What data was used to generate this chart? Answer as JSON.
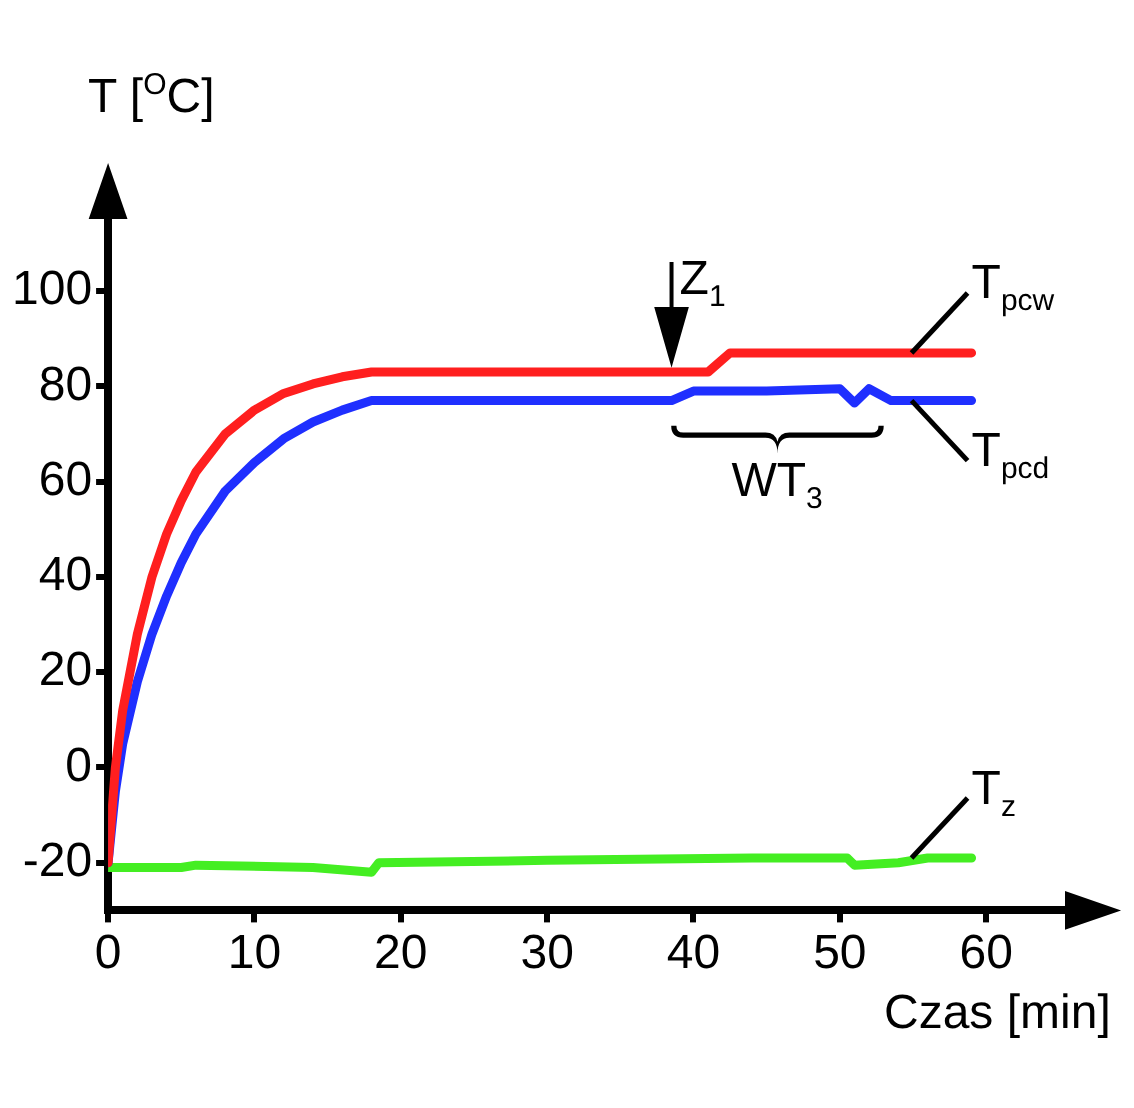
{
  "chart_data": {
    "type": "line",
    "xlabel": "Czas [min]",
    "ylabel": "T [$^{O}$C]",
    "xlim": [
      0,
      66
    ],
    "ylim": [
      -30,
      117
    ],
    "xticks": [
      0,
      10,
      20,
      30,
      40,
      50,
      60
    ],
    "yticks": [
      -20,
      0,
      20,
      40,
      60,
      80,
      100
    ],
    "grid": false,
    "legend": false,
    "marker": "none",
    "line_style": "solid",
    "series": [
      {
        "name": "T$_{pcw}$",
        "color": "#ff1f1f",
        "x": [
          0,
          0.5,
          1,
          2,
          3,
          4,
          5,
          6,
          8,
          10,
          12,
          14,
          16,
          18,
          41,
          42.5,
          59
        ],
        "values": [
          -20,
          0,
          12,
          28,
          40,
          49,
          56,
          62,
          70,
          75,
          78.5,
          80.5,
          82,
          83,
          83,
          87,
          87
        ]
      },
      {
        "name": "T$_{pcd}$",
        "color": "#1f2fff",
        "x": [
          0,
          0.5,
          1,
          2,
          3,
          4,
          5,
          6,
          8,
          10,
          12,
          14,
          16,
          18,
          30,
          38.5,
          40,
          45,
          50,
          51,
          52,
          53.5,
          59
        ],
        "values": [
          -20,
          -5,
          5,
          18,
          28,
          36,
          43,
          49,
          58,
          64,
          69,
          72.5,
          75,
          77,
          77,
          77,
          79,
          79,
          79.5,
          76.5,
          79.5,
          77,
          77
        ]
      },
      {
        "name": "T$_{z}$",
        "color": "#44ee22",
        "x": [
          0,
          5,
          6,
          14,
          18,
          18.5,
          30,
          44,
          50.5,
          51,
          54,
          56,
          59
        ],
        "values": [
          -21,
          -21,
          -20.5,
          -21,
          -22,
          -20,
          -19.5,
          -19,
          -19,
          -20.5,
          -20,
          -19,
          -19
        ]
      }
    ],
    "annotations": [
      {
        "text": "Z$_{1}$",
        "x": 38.5,
        "y": 83
      },
      "WT$_{3}$"
    ]
  }
}
